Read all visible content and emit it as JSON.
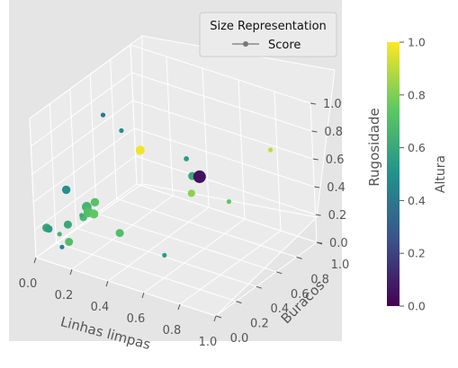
{
  "chart_data": {
    "type": "scatter",
    "projection": "3d",
    "axes": {
      "x": {
        "label": "Linhas limpas",
        "ticks": [
          "0.0",
          "0.2",
          "0.4",
          "0.6",
          "0.8",
          "1.0"
        ],
        "range": [
          0,
          1
        ]
      },
      "y": {
        "label": "Buracos",
        "ticks": [
          "0.0",
          "0.2",
          "0.4",
          "0.6",
          "0.8",
          "1.0"
        ],
        "range": [
          0,
          1
        ]
      },
      "z": {
        "label": "Rugosidade",
        "ticks": [
          "0.0",
          "0.2",
          "0.4",
          "0.6",
          "0.8",
          "1.0"
        ],
        "range": [
          0,
          1
        ]
      }
    },
    "grid": true,
    "legend": {
      "title": "Size Representation",
      "entry": "Score",
      "placement": "top-right"
    },
    "colorbar": {
      "label": "Altura",
      "ticks": [
        "0.0",
        "0.2",
        "0.4",
        "0.6",
        "0.8",
        "1.0"
      ],
      "range": [
        0,
        1
      ],
      "colormap": "viridis"
    },
    "points": [
      {
        "x": 0.62,
        "y": 0.55,
        "z": 0.55,
        "c": 0.05,
        "s": 1.0
      },
      {
        "x": 0.38,
        "y": 0.4,
        "z": 0.72,
        "c": 0.98,
        "s": 0.45
      },
      {
        "x": 0.55,
        "y": 0.6,
        "z": 0.5,
        "c": 0.6,
        "s": 0.35
      },
      {
        "x": 0.6,
        "y": 0.5,
        "z": 0.45,
        "c": 0.82,
        "s": 0.28
      },
      {
        "x": 0.55,
        "y": 0.55,
        "z": 0.65,
        "c": 0.55,
        "s": 0.12
      },
      {
        "x": 0.88,
        "y": 0.8,
        "z": 0.72,
        "c": 0.9,
        "s": 0.08
      },
      {
        "x": 0.75,
        "y": 0.6,
        "z": 0.4,
        "c": 0.75,
        "s": 0.08
      },
      {
        "x": 0.25,
        "y": 0.45,
        "z": 0.78,
        "c": 0.5,
        "s": 0.08
      },
      {
        "x": 0.15,
        "y": 0.45,
        "z": 0.85,
        "c": 0.4,
        "s": 0.08
      },
      {
        "x": 0.52,
        "y": 0.35,
        "z": 0.05,
        "c": 0.55,
        "s": 0.08
      },
      {
        "x": 0.42,
        "y": 0.1,
        "z": 0.3,
        "c": 0.7,
        "s": 0.35
      },
      {
        "x": 0.1,
        "y": 0.15,
        "z": 0.45,
        "c": 0.5,
        "s": 0.4
      },
      {
        "x": 0.2,
        "y": 0.25,
        "z": 0.35,
        "c": 0.72,
        "s": 0.4
      },
      {
        "x": 0.17,
        "y": 0.22,
        "z": 0.32,
        "c": 0.65,
        "s": 0.55
      },
      {
        "x": 0.19,
        "y": 0.2,
        "z": 0.3,
        "c": 0.7,
        "s": 0.55
      },
      {
        "x": 0.22,
        "y": 0.2,
        "z": 0.3,
        "c": 0.75,
        "s": 0.45
      },
      {
        "x": 0.18,
        "y": 0.22,
        "z": 0.28,
        "c": 0.62,
        "s": 0.35
      },
      {
        "x": 0.16,
        "y": 0.2,
        "z": 0.25,
        "c": 0.68,
        "s": 0.3
      },
      {
        "x": 0.1,
        "y": 0.15,
        "z": 0.2,
        "c": 0.6,
        "s": 0.35
      },
      {
        "x": 0.05,
        "y": 0.05,
        "z": 0.2,
        "c": 0.55,
        "s": 0.3
      },
      {
        "x": 0.02,
        "y": 0.08,
        "z": 0.18,
        "c": 0.6,
        "s": 0.4
      },
      {
        "x": 0.12,
        "y": 0.05,
        "z": 0.1,
        "c": 0.45,
        "s": 0.08
      },
      {
        "x": 0.08,
        "y": 0.1,
        "z": 0.15,
        "c": 0.65,
        "s": 0.08
      },
      {
        "x": 0.12,
        "y": 0.12,
        "z": 0.1,
        "c": 0.7,
        "s": 0.35
      },
      {
        "x": 0.18,
        "y": 0.15,
        "z": 0.3,
        "c": 0.62,
        "s": 0.08
      }
    ]
  }
}
